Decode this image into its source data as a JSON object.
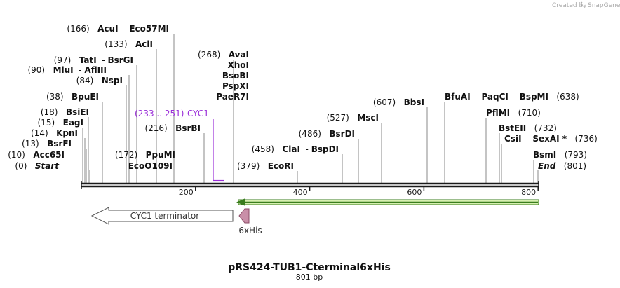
{
  "credit": {
    "text": "Created by",
    "brand": "SnapGene"
  },
  "plasmid": {
    "name": "pRS424-TUB1-Cterminal6xHis",
    "length_label": "801 bp",
    "length": 801
  },
  "ruler": {
    "ticks": [
      "200",
      "400",
      "600",
      "800"
    ]
  },
  "sites": [
    {
      "id": "start",
      "pos": "(0)",
      "name": "Start",
      "italic": true,
      "side": "left"
    },
    {
      "id": "acc65i",
      "pos": "(10)",
      "name": "Acc65I",
      "side": "left"
    },
    {
      "id": "bsrfi",
      "pos": "(13)",
      "name": "BsrFI",
      "side": "left"
    },
    {
      "id": "kpni",
      "pos": "(14)",
      "name": "KpnI",
      "side": "left"
    },
    {
      "id": "eagi",
      "pos": "(15)",
      "name": "EagI",
      "side": "left"
    },
    {
      "id": "bsiei",
      "pos": "(18)",
      "name": "BsiEI",
      "side": "left"
    },
    {
      "id": "bpuei",
      "pos": "(38)",
      "name": "BpuEI",
      "side": "left"
    },
    {
      "id": "nspi",
      "pos": "(84)",
      "name": "NspI",
      "side": "left"
    },
    {
      "id": "mlui",
      "pos": "(90)",
      "name": "MluI",
      "name2": "AflIII",
      "side": "left"
    },
    {
      "id": "tati",
      "pos": "(97)",
      "name": "TatI",
      "name2": "BsrGI",
      "side": "left"
    },
    {
      "id": "acli",
      "pos": "(133)",
      "name": "AclI",
      "side": "left"
    },
    {
      "id": "acui",
      "pos": "(166)",
      "name": "AcuI",
      "name2": "Eco57MI",
      "side": "left"
    },
    {
      "id": "ppumi",
      "pos": "(172)",
      "name": "PpuMI",
      "side": "left"
    },
    {
      "id": "eco0109i",
      "pos": "",
      "name": "EcoO109I",
      "side": "left"
    },
    {
      "id": "bsrbi",
      "pos": "(216)",
      "name": "BsrBI",
      "side": "left"
    },
    {
      "id": "avai",
      "pos": "(268)",
      "name": "AvaI",
      "side": "left"
    },
    {
      "id": "xhoi",
      "pos": "",
      "name": "XhoI",
      "side": "left"
    },
    {
      "id": "bsobi",
      "pos": "",
      "name": "BsoBI",
      "side": "left"
    },
    {
      "id": "pspxi",
      "pos": "",
      "name": "PspXI",
      "side": "left"
    },
    {
      "id": "paer7i",
      "pos": "",
      "name": "PaeR7I",
      "side": "left"
    },
    {
      "id": "ecori",
      "pos": "(379)",
      "name": "EcoRI",
      "side": "left"
    },
    {
      "id": "clai",
      "pos": "(458)",
      "name": "ClaI",
      "name2": "BspDI",
      "side": "left"
    },
    {
      "id": "bsrdi",
      "pos": "(486)",
      "name": "BsrDI",
      "side": "left"
    },
    {
      "id": "msci",
      "pos": "(527)",
      "name": "MscI",
      "side": "left"
    },
    {
      "id": "bbsi",
      "pos": "(607)",
      "name": "BbsI",
      "side": "left"
    },
    {
      "id": "bfuai",
      "pos": "(638)",
      "name": "BfuAI",
      "name2": "PaqCI",
      "name3": "BspMI",
      "side": "right"
    },
    {
      "id": "pflmi",
      "pos": "(710)",
      "name": "PflMI",
      "side": "right"
    },
    {
      "id": "bsteii",
      "pos": "(732)",
      "name": "BstEII",
      "side": "right"
    },
    {
      "id": "csii",
      "pos": "(736)",
      "name": "CsiI",
      "name2": "SexAI *",
      "side": "right"
    },
    {
      "id": "bsmi",
      "pos": "(793)",
      "name": "BsmI",
      "side": "right"
    },
    {
      "id": "end",
      "pos": "(801)",
      "name": "End",
      "italic": true,
      "side": "right"
    }
  ],
  "features": {
    "cyc1_range": "(233 .. 251)",
    "cyc1_name": "CYC1",
    "terminator": "CYC1 terminator",
    "his_tag": "6xHis"
  },
  "colors": {
    "cyc1": "#9b30d9",
    "orf": "#3a7d1e",
    "orf_fill": "#d7f0b0",
    "his_fill": "#c98fa8",
    "his_stroke": "#8a4b66",
    "backbone": "#1a1a1a"
  }
}
